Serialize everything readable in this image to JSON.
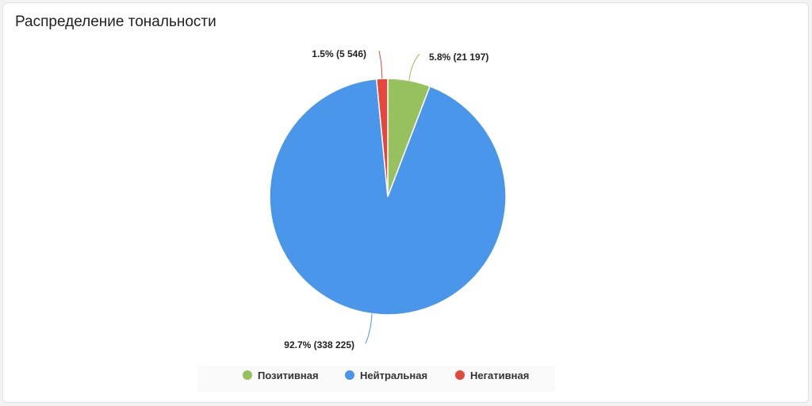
{
  "title": "Распределение тональности",
  "chart_data": {
    "type": "pie",
    "title": "Распределение тональности",
    "slices": [
      {
        "name": "Позитивная",
        "percent": 5.8,
        "count": 21197,
        "label": "5.8% (21 197)",
        "color": "#97c15e"
      },
      {
        "name": "Нейтральная",
        "percent": 92.7,
        "count": 338225,
        "label": "92.7% (338 225)",
        "color": "#4996eb"
      },
      {
        "name": "Негативная",
        "percent": 1.5,
        "count": 5546,
        "label": "1.5% (5 546)",
        "color": "#e4473c"
      }
    ],
    "legend": {
      "position": "bottom",
      "items": [
        "Позитивная",
        "Нейтральная",
        "Негативная"
      ]
    }
  }
}
